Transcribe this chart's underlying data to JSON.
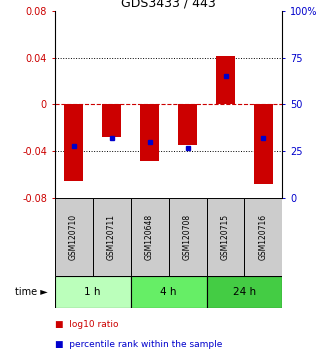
{
  "title": "GDS3433 / 443",
  "samples": [
    "GSM120710",
    "GSM120711",
    "GSM120648",
    "GSM120708",
    "GSM120715",
    "GSM120716"
  ],
  "log10_ratios": [
    -0.065,
    -0.028,
    -0.048,
    -0.035,
    0.041,
    -0.068
  ],
  "percentile_ranks": [
    28,
    32,
    30,
    27,
    65,
    32
  ],
  "groups": [
    {
      "label": "1 h",
      "indices": [
        0,
        1
      ],
      "color": "#bbffbb"
    },
    {
      "label": "4 h",
      "indices": [
        2,
        3
      ],
      "color": "#66ee66"
    },
    {
      "label": "24 h",
      "indices": [
        4,
        5
      ],
      "color": "#44cc44"
    }
  ],
  "ylim_left": [
    -0.08,
    0.08
  ],
  "ylim_right": [
    0,
    100
  ],
  "yticks_left": [
    -0.08,
    -0.04,
    0,
    0.04,
    0.08
  ],
  "ytick_labels_left": [
    "-0.08",
    "-0.04",
    "0",
    "0.04",
    "0.08"
  ],
  "yticks_right": [
    0,
    25,
    50,
    75,
    100
  ],
  "ytick_labels_right": [
    "0",
    "25",
    "50",
    "75",
    "100%"
  ],
  "bar_color": "#cc0000",
  "dot_color": "#0000cc",
  "zero_line_color": "#cc0000",
  "sample_box_color": "#cccccc",
  "legend_ratio_color": "#cc0000",
  "legend_percentile_color": "#0000cc",
  "bar_width": 0.5
}
